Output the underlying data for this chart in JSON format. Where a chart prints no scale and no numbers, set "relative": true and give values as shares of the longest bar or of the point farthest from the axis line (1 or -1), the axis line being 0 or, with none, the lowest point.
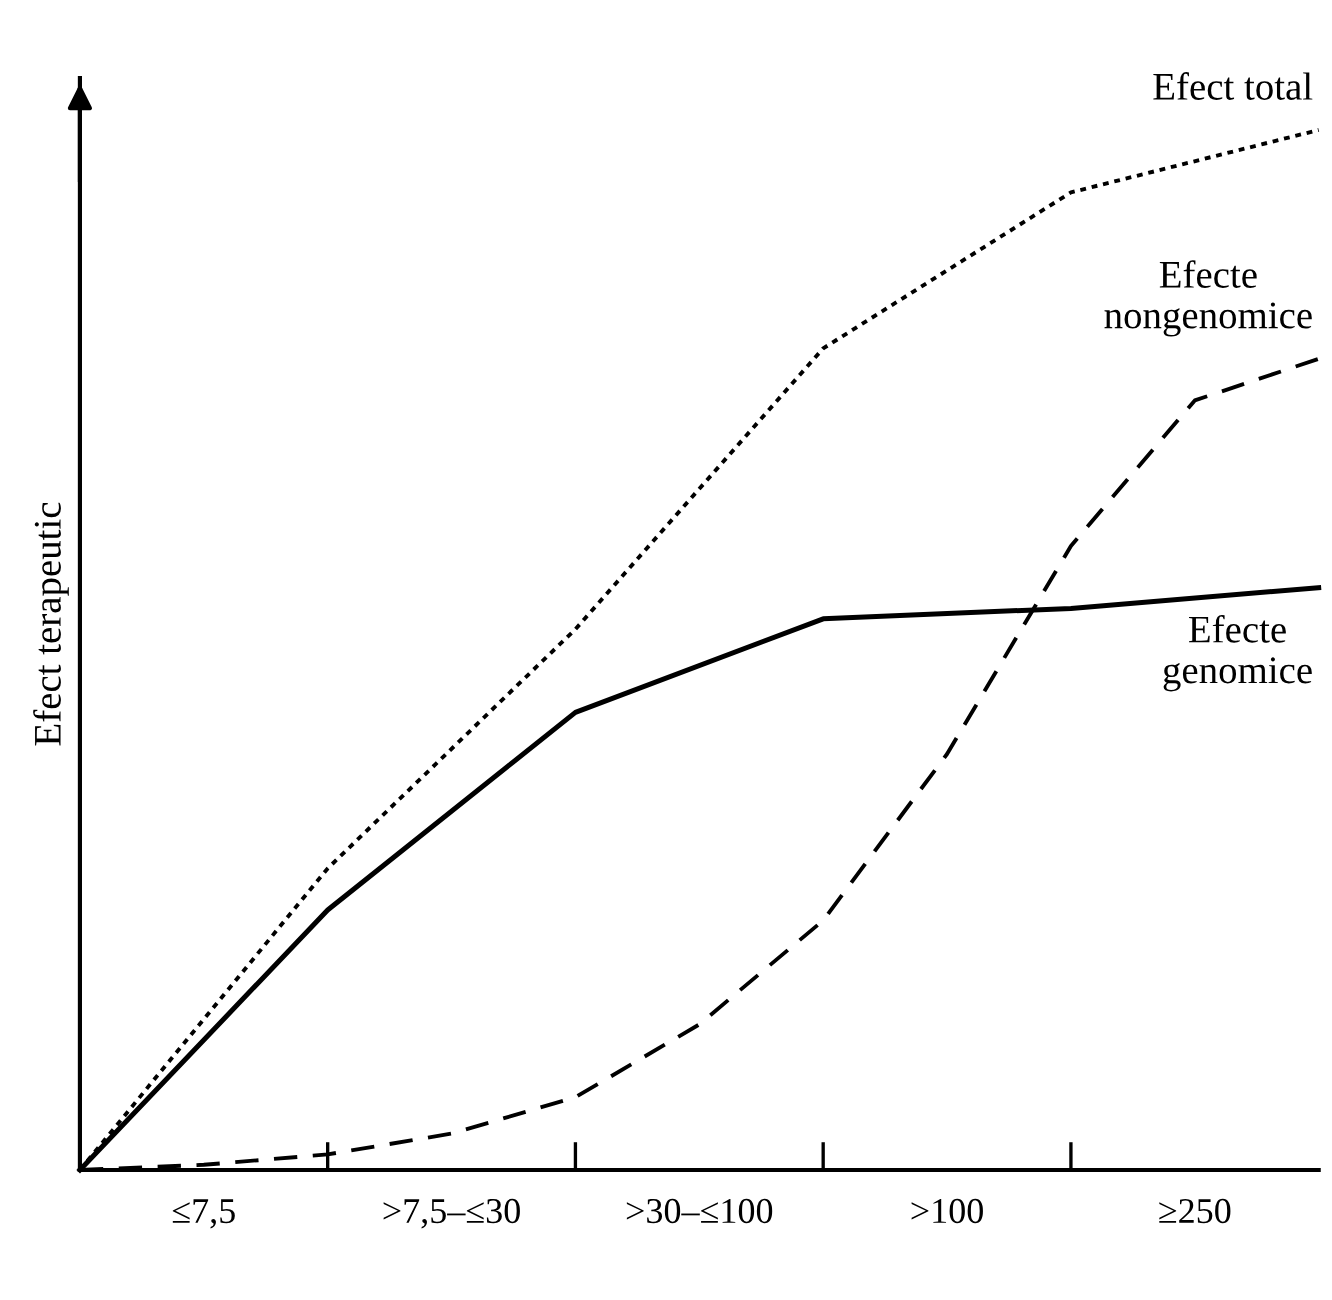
{
  "chart_data": {
    "type": "line",
    "relative": true,
    "ylabel": "Efect terapeutic",
    "categories": [
      null,
      "≤7,5",
      null,
      ">7,5–≤30",
      null,
      ">30–≤100",
      null,
      ">100",
      null,
      "≥250",
      null
    ],
    "series": [
      {
        "name": "Efect total",
        "color": "#000000",
        "line_style": "dotted",
        "values": [
          0,
          null,
          0.29,
          null,
          0.52,
          null,
          0.79,
          null,
          0.94,
          null,
          1
        ]
      },
      {
        "name": "Efecte\nnongenomice",
        "color": "#000000",
        "line_style": "dashed",
        "values": [
          0,
          0.005,
          0.015,
          0.035,
          0.07,
          0.14,
          0.24,
          0.4,
          0.6,
          0.74,
          0.78
        ]
      },
      {
        "name": "Efecte\ngenomice",
        "color": "#000000",
        "line_style": "solid",
        "values": [
          0,
          null,
          0.25,
          null,
          0.44,
          null,
          0.53,
          null,
          0.54,
          null,
          0.56
        ]
      }
    ],
    "grid": false,
    "legend": false,
    "marker": "none"
  }
}
